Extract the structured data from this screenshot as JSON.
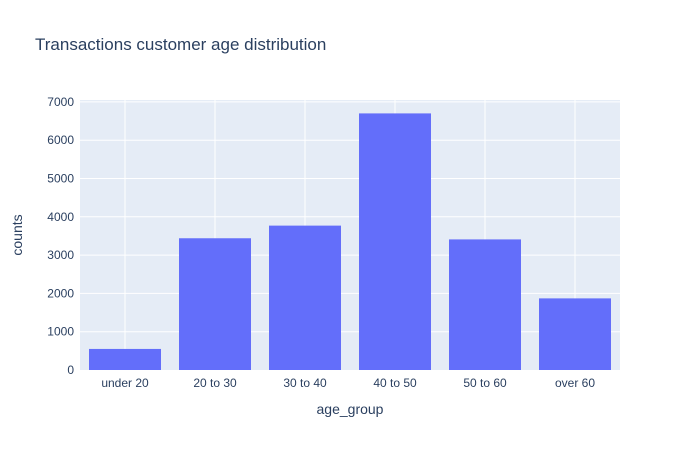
{
  "chart_data": {
    "type": "bar",
    "title": "Transactions customer age distribution",
    "xlabel": "age_group",
    "ylabel": "counts",
    "categories": [
      "under 20",
      "20 to 30",
      "30 to 40",
      "40 to 50",
      "50 to 60",
      "over 60"
    ],
    "values": [
      550,
      3440,
      3770,
      6700,
      3410,
      1870
    ],
    "ylim": [
      0,
      7050
    ],
    "yticks": [
      0,
      1000,
      2000,
      3000,
      4000,
      5000,
      6000,
      7000
    ],
    "ytick_labels": [
      "0",
      "1000",
      "2000",
      "3000",
      "4000",
      "5000",
      "6000",
      "7000"
    ],
    "grid": true,
    "colors": {
      "bar": "#636efa",
      "plot_background": "#e5ecf6",
      "grid": "#ffffff",
      "text": "#2a3f5f"
    }
  }
}
